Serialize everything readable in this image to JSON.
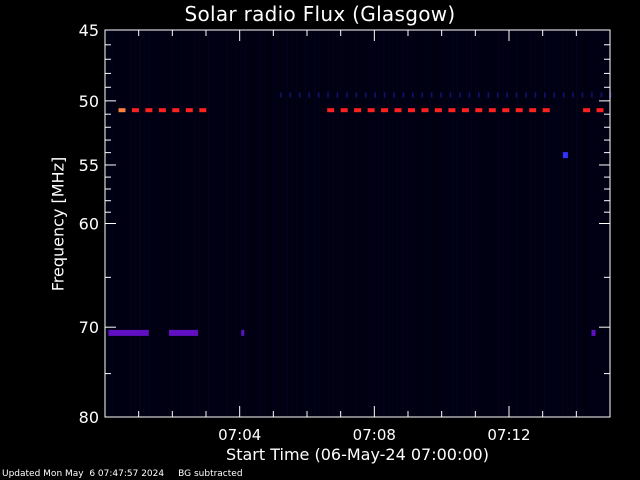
{
  "chart_data": {
    "type": "heatmap",
    "title": "Solar radio Flux (Glasgow)",
    "xlabel": "Start Time (06-May-24 07:00:00)",
    "ylabel": "Frequency [MHz]",
    "x_tick_labels": [
      "07:04",
      "07:08",
      "07:12"
    ],
    "x_ticks_minutes": [
      4,
      8,
      12
    ],
    "xlim_minutes": [
      0,
      15
    ],
    "y_tick_labels": [
      "45",
      "50",
      "55",
      "60",
      "70",
      "80"
    ],
    "y_ticks": [
      45,
      50,
      55,
      60,
      70,
      80
    ],
    "ylim": [
      45,
      80
    ],
    "y_scale": "log",
    "y_inverted": true,
    "background_color": "#000010",
    "features": [
      {
        "name": "band-50mhz-first",
        "freq_mhz": 50.7,
        "t_start_min": 0.4,
        "t_end_min": 3.1,
        "color": "#ff2020"
      },
      {
        "name": "band-50mhz-second",
        "freq_mhz": 50.7,
        "t_start_min": 6.6,
        "t_end_min": 13.3,
        "color": "#ff2020"
      },
      {
        "name": "band-50mhz-end",
        "freq_mhz": 50.7,
        "t_start_min": 14.2,
        "t_end_min": 14.8,
        "color": "#ff2020"
      },
      {
        "name": "band-70mhz-first",
        "freq_mhz": 70.6,
        "t_start_min": 0.1,
        "t_end_min": 1.3,
        "color": "#6010c0"
      },
      {
        "name": "band-70mhz-second",
        "freq_mhz": 70.6,
        "t_start_min": 1.9,
        "t_end_min": 3.3,
        "color": "#6010c0"
      },
      {
        "name": "spot-near-54mhz",
        "freq_mhz": 54.2,
        "t_start_min": 13.6,
        "t_end_min": 13.8,
        "color": "#3030ff"
      }
    ]
  },
  "footer": {
    "updated": "Updated Mon May  6 07:47:57 2024",
    "note": "BG subtracted"
  }
}
